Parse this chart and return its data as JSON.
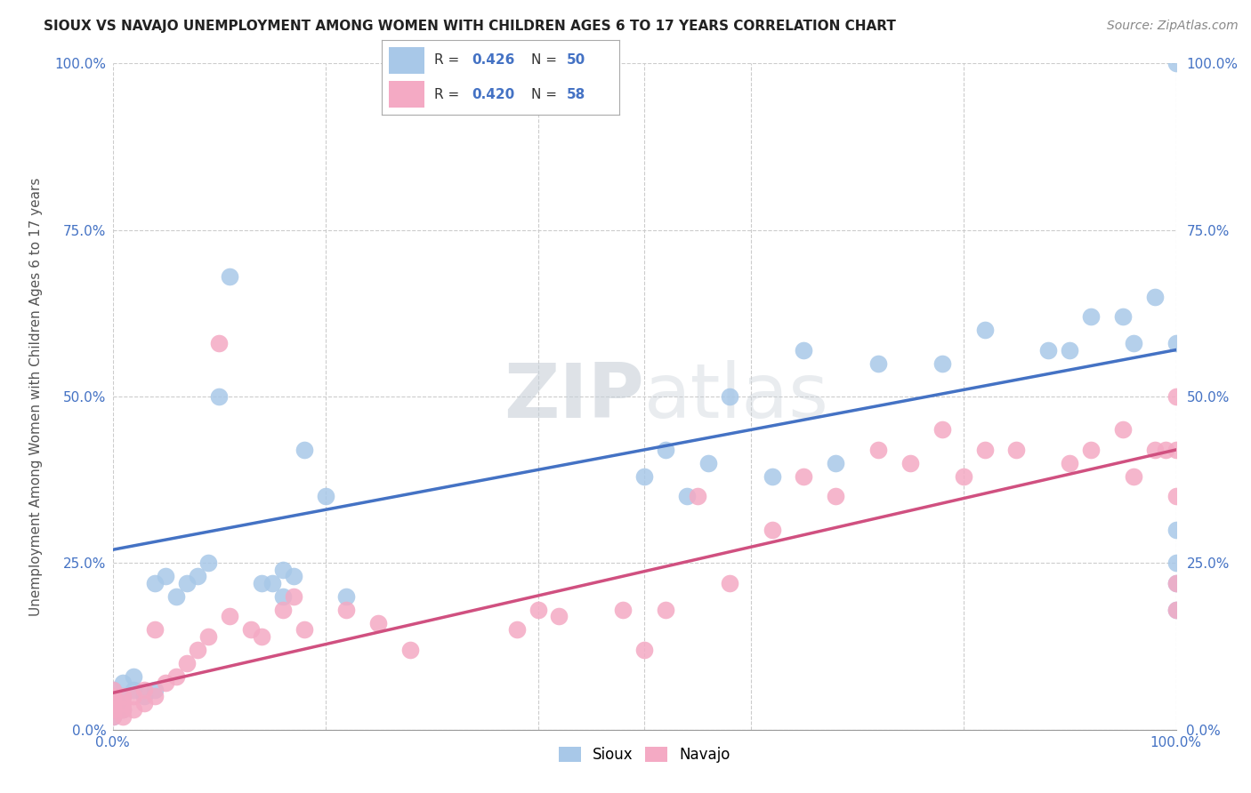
{
  "title": "SIOUX VS NAVAJO UNEMPLOYMENT AMONG WOMEN WITH CHILDREN AGES 6 TO 17 YEARS CORRELATION CHART",
  "source": "Source: ZipAtlas.com",
  "ylabel": "Unemployment Among Women with Children Ages 6 to 17 years",
  "xlim": [
    0.0,
    1.0
  ],
  "ylim": [
    0.0,
    1.0
  ],
  "ytick_labels": [
    "0.0%",
    "25.0%",
    "50.0%",
    "75.0%",
    "100.0%"
  ],
  "ytick_values": [
    0.0,
    0.25,
    0.5,
    0.75,
    1.0
  ],
  "xtick_values": [
    0.0,
    1.0
  ],
  "xtick_labels": [
    "0.0%",
    "100.0%"
  ],
  "grid_color": "#cccccc",
  "background_color": "#ffffff",
  "sioux_color": "#a8c8e8",
  "navajo_color": "#f4aac4",
  "sioux_line_color": "#4472c4",
  "navajo_line_color": "#d05080",
  "watermark": "ZIPatlas",
  "sioux_line_x0": 0.0,
  "sioux_line_y0": 0.27,
  "sioux_line_x1": 1.0,
  "sioux_line_y1": 0.57,
  "navajo_line_x0": 0.0,
  "navajo_line_y0": 0.055,
  "navajo_line_x1": 1.0,
  "navajo_line_y1": 0.42,
  "sioux_x": [
    0.0,
    0.0,
    0.0,
    0.0,
    0.01,
    0.01,
    0.01,
    0.02,
    0.02,
    0.03,
    0.04,
    0.04,
    0.05,
    0.06,
    0.07,
    0.08,
    0.09,
    0.1,
    0.11,
    0.14,
    0.15,
    0.16,
    0.16,
    0.17,
    0.18,
    0.2,
    0.22,
    0.5,
    0.52,
    0.54,
    0.56,
    0.58,
    0.62,
    0.65,
    0.68,
    0.72,
    0.78,
    0.82,
    0.88,
    0.9,
    0.92,
    0.95,
    0.96,
    0.98,
    1.0,
    1.0,
    1.0,
    1.0,
    1.0,
    1.0
  ],
  "sioux_y": [
    0.02,
    0.04,
    0.05,
    0.06,
    0.03,
    0.05,
    0.07,
    0.06,
    0.08,
    0.05,
    0.06,
    0.22,
    0.23,
    0.2,
    0.22,
    0.23,
    0.25,
    0.5,
    0.68,
    0.22,
    0.22,
    0.2,
    0.24,
    0.23,
    0.42,
    0.35,
    0.2,
    0.38,
    0.42,
    0.35,
    0.4,
    0.5,
    0.38,
    0.57,
    0.4,
    0.55,
    0.55,
    0.6,
    0.57,
    0.57,
    0.62,
    0.62,
    0.58,
    0.65,
    0.18,
    0.22,
    0.25,
    0.3,
    0.58,
    1.0
  ],
  "navajo_x": [
    0.0,
    0.0,
    0.0,
    0.0,
    0.0,
    0.01,
    0.01,
    0.01,
    0.01,
    0.02,
    0.02,
    0.03,
    0.03,
    0.04,
    0.04,
    0.05,
    0.06,
    0.07,
    0.08,
    0.09,
    0.1,
    0.11,
    0.13,
    0.14,
    0.16,
    0.17,
    0.18,
    0.22,
    0.25,
    0.28,
    0.38,
    0.4,
    0.42,
    0.48,
    0.5,
    0.52,
    0.55,
    0.58,
    0.62,
    0.65,
    0.68,
    0.72,
    0.75,
    0.78,
    0.8,
    0.82,
    0.85,
    0.9,
    0.92,
    0.95,
    0.96,
    0.98,
    0.99,
    1.0,
    1.0,
    1.0,
    1.0,
    1.0
  ],
  "navajo_y": [
    0.02,
    0.03,
    0.04,
    0.05,
    0.06,
    0.02,
    0.03,
    0.04,
    0.05,
    0.03,
    0.05,
    0.04,
    0.06,
    0.05,
    0.15,
    0.07,
    0.08,
    0.1,
    0.12,
    0.14,
    0.58,
    0.17,
    0.15,
    0.14,
    0.18,
    0.2,
    0.15,
    0.18,
    0.16,
    0.12,
    0.15,
    0.18,
    0.17,
    0.18,
    0.12,
    0.18,
    0.35,
    0.22,
    0.3,
    0.38,
    0.35,
    0.42,
    0.4,
    0.45,
    0.38,
    0.42,
    0.42,
    0.4,
    0.42,
    0.45,
    0.38,
    0.42,
    0.42,
    0.18,
    0.22,
    0.35,
    0.42,
    0.5
  ]
}
